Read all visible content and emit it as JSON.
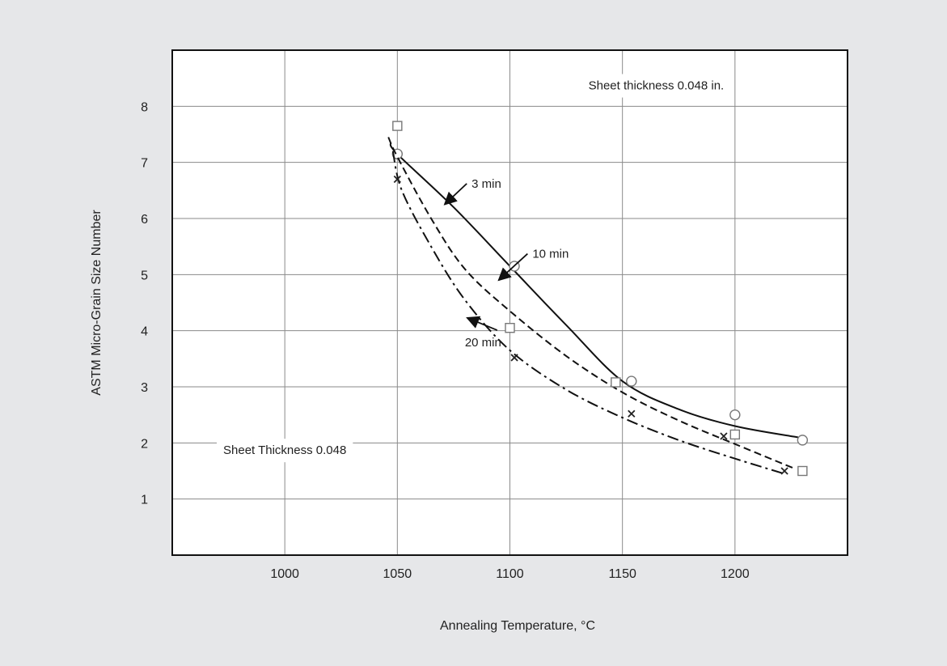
{
  "chart_data": {
    "type": "line",
    "title": "",
    "xlabel": "Annealing Temperature, °C",
    "ylabel": "ASTM Micro-Grain Size Number",
    "xlim": [
      950,
      1250
    ],
    "ylim": [
      0,
      9
    ],
    "x_ticks": [
      1000,
      1050,
      1100,
      1150,
      1200
    ],
    "y_ticks": [
      1,
      2,
      3,
      4,
      5,
      6,
      7,
      8
    ],
    "grid": true,
    "series": [
      {
        "name": "3 min",
        "marker": "circle",
        "line_style": "solid",
        "points": [
          [
            1050,
            7.15
          ],
          [
            1102,
            5.15
          ],
          [
            1154,
            3.1
          ],
          [
            1200,
            2.5
          ],
          [
            1230,
            2.05
          ]
        ],
        "curve": [
          [
            1047,
            7.35
          ],
          [
            1050,
            7.15
          ],
          [
            1075,
            6.2
          ],
          [
            1100,
            5.15
          ],
          [
            1125,
            4.1
          ],
          [
            1150,
            3.1
          ],
          [
            1175,
            2.6
          ],
          [
            1200,
            2.3
          ],
          [
            1228,
            2.1
          ]
        ]
      },
      {
        "name": "10 min",
        "marker": "square",
        "line_style": "dashed",
        "points": [
          [
            1050,
            7.65
          ],
          [
            1100,
            4.05
          ],
          [
            1147,
            3.08
          ],
          [
            1200,
            2.15
          ],
          [
            1230,
            1.5
          ]
        ],
        "curve": [
          [
            1046,
            7.45
          ],
          [
            1050,
            7.1
          ],
          [
            1065,
            6.0
          ],
          [
            1080,
            5.1
          ],
          [
            1100,
            4.35
          ],
          [
            1125,
            3.55
          ],
          [
            1150,
            2.9
          ],
          [
            1175,
            2.4
          ],
          [
            1200,
            1.98
          ],
          [
            1226,
            1.55
          ]
        ]
      },
      {
        "name": "20 min",
        "marker": "x",
        "line_style": "dashdot",
        "points": [
          [
            1050,
            6.7
          ],
          [
            1102,
            3.52
          ],
          [
            1154,
            2.52
          ],
          [
            1195,
            2.12
          ],
          [
            1222,
            1.5
          ]
        ],
        "curve": [
          [
            1048,
            7.2
          ],
          [
            1052,
            6.5
          ],
          [
            1065,
            5.5
          ],
          [
            1080,
            4.55
          ],
          [
            1100,
            3.65
          ],
          [
            1125,
            2.95
          ],
          [
            1150,
            2.45
          ],
          [
            1175,
            2.05
          ],
          [
            1200,
            1.72
          ],
          [
            1222,
            1.45
          ]
        ]
      }
    ],
    "annotations": [
      {
        "text": "3 min",
        "text_x": 1083,
        "text_y": 6.55,
        "arrow_to": [
          1071,
          6.25
        ]
      },
      {
        "text": "10 min",
        "text_x": 1110,
        "text_y": 5.3,
        "arrow_to": [
          1095,
          4.9
        ]
      },
      {
        "text": "20 min",
        "text_x": 1080,
        "text_y": 3.72,
        "arrow_to": [
          1081,
          4.23
        ]
      }
    ],
    "notes": [
      {
        "text": "Sheet thickness 0.048 in.",
        "x": 1165,
        "y": 8.3
      },
      {
        "text": "Sheet Thickness 0.048",
        "x": 1000,
        "y": 1.8
      }
    ]
  }
}
